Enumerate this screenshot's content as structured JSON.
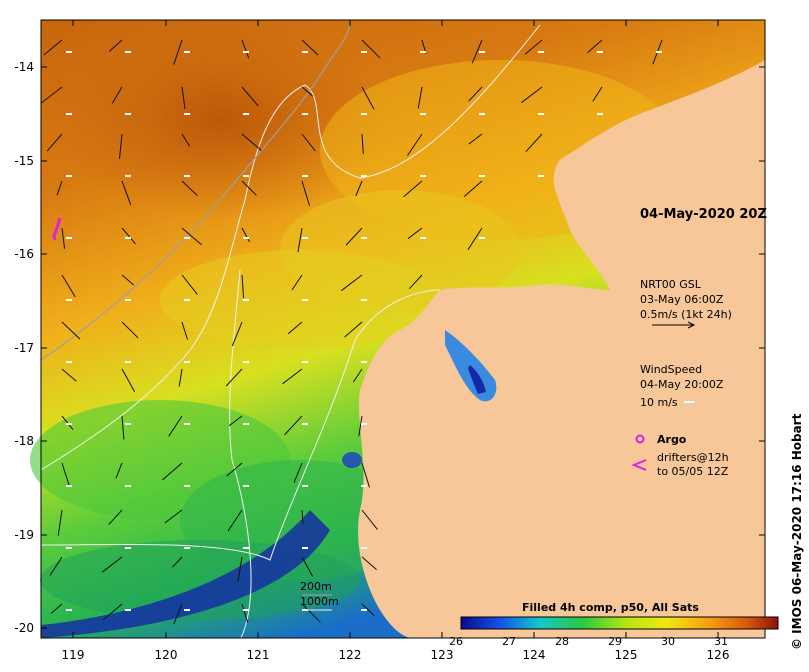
{
  "map": {
    "date_label": "04-May-2020 20Z",
    "lat_ticks": [
      "-14",
      "-15",
      "-16",
      "-17",
      "-18",
      "-19",
      "-20"
    ],
    "lon_ticks": [
      "119",
      "120",
      "121",
      "122",
      "123",
      "124",
      "125",
      "126"
    ],
    "current_legend": {
      "product": "NRT00 GSL",
      "time": "03-May 06:00Z",
      "scale": "0.5m/s (1kt 24h)"
    },
    "wind_legend": {
      "title": "WindSpeed",
      "time": "04-May 20:00Z",
      "scale": "10 m/s"
    },
    "argo_label": "Argo",
    "drifters_label_1": "drifters@12h",
    "drifters_label_2": "to 05/05 12Z",
    "bathy": {
      "depth_1": "200m",
      "depth_2": "1000m"
    },
    "colorbar": {
      "title": "Filled 4h comp, p50, All Sats",
      "ticks": [
        "26",
        "27",
        "28",
        "29",
        "30",
        "31"
      ],
      "range": [
        25.5,
        31.5
      ]
    },
    "credit": "© IMOS 06-May-2020 17:16 Hobart",
    "colors": {
      "land": "#f7c79a",
      "warm": "#d06a10",
      "mid": "#f0b418",
      "cool": "#c8e81c",
      "green": "#3cc84a",
      "blue": "#0a1e9c",
      "argo": "#dd22dd"
    }
  }
}
